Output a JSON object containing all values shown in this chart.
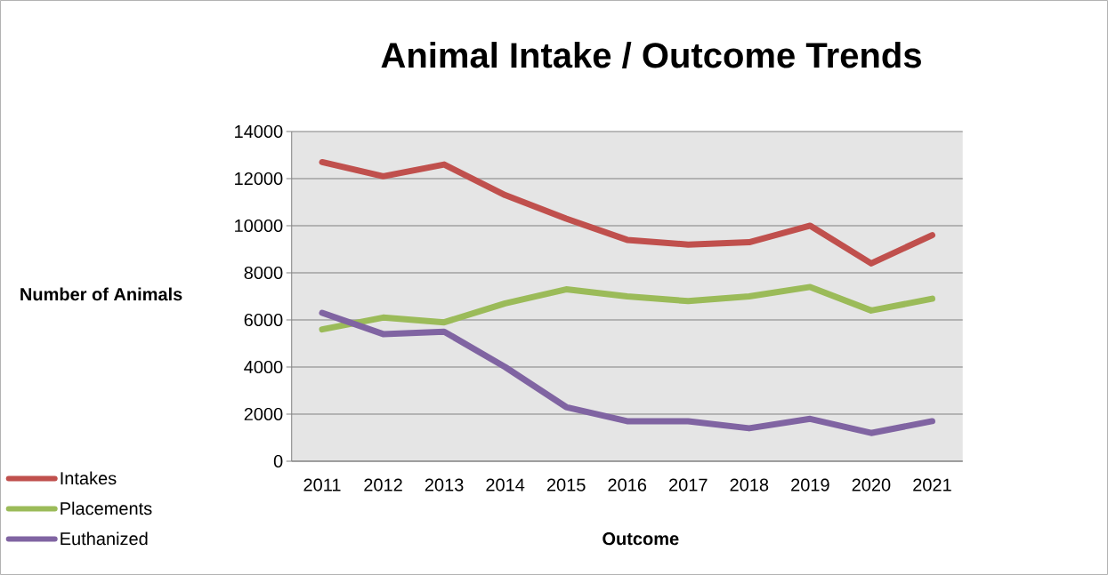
{
  "chart_data": {
    "type": "line",
    "title": "Animal Intake / Outcome Trends",
    "xlabel": "Outcome",
    "ylabel": "Number of Animals",
    "categories": [
      "2011",
      "2012",
      "2013",
      "2014",
      "2015",
      "2016",
      "2017",
      "2018",
      "2019",
      "2020",
      "2021"
    ],
    "series": [
      {
        "name": "Intakes",
        "color": "#c0504d",
        "values": [
          12700,
          12100,
          12600,
          11300,
          10300,
          9400,
          9200,
          9300,
          10000,
          8400,
          9600
        ]
      },
      {
        "name": "Placements",
        "color": "#9bbb59",
        "values": [
          5600,
          6100,
          5900,
          6700,
          7300,
          7000,
          6800,
          7000,
          7400,
          6400,
          6900
        ]
      },
      {
        "name": "Euthanized",
        "color": "#8064a2",
        "values": [
          6300,
          5400,
          5500,
          4000,
          2300,
          1700,
          1700,
          1400,
          1800,
          1200,
          1700
        ]
      }
    ],
    "ylim": [
      0,
      14000
    ],
    "yticks": [
      0,
      2000,
      4000,
      6000,
      8000,
      10000,
      12000,
      14000
    ],
    "grid": "y",
    "legend": "bottom left"
  }
}
